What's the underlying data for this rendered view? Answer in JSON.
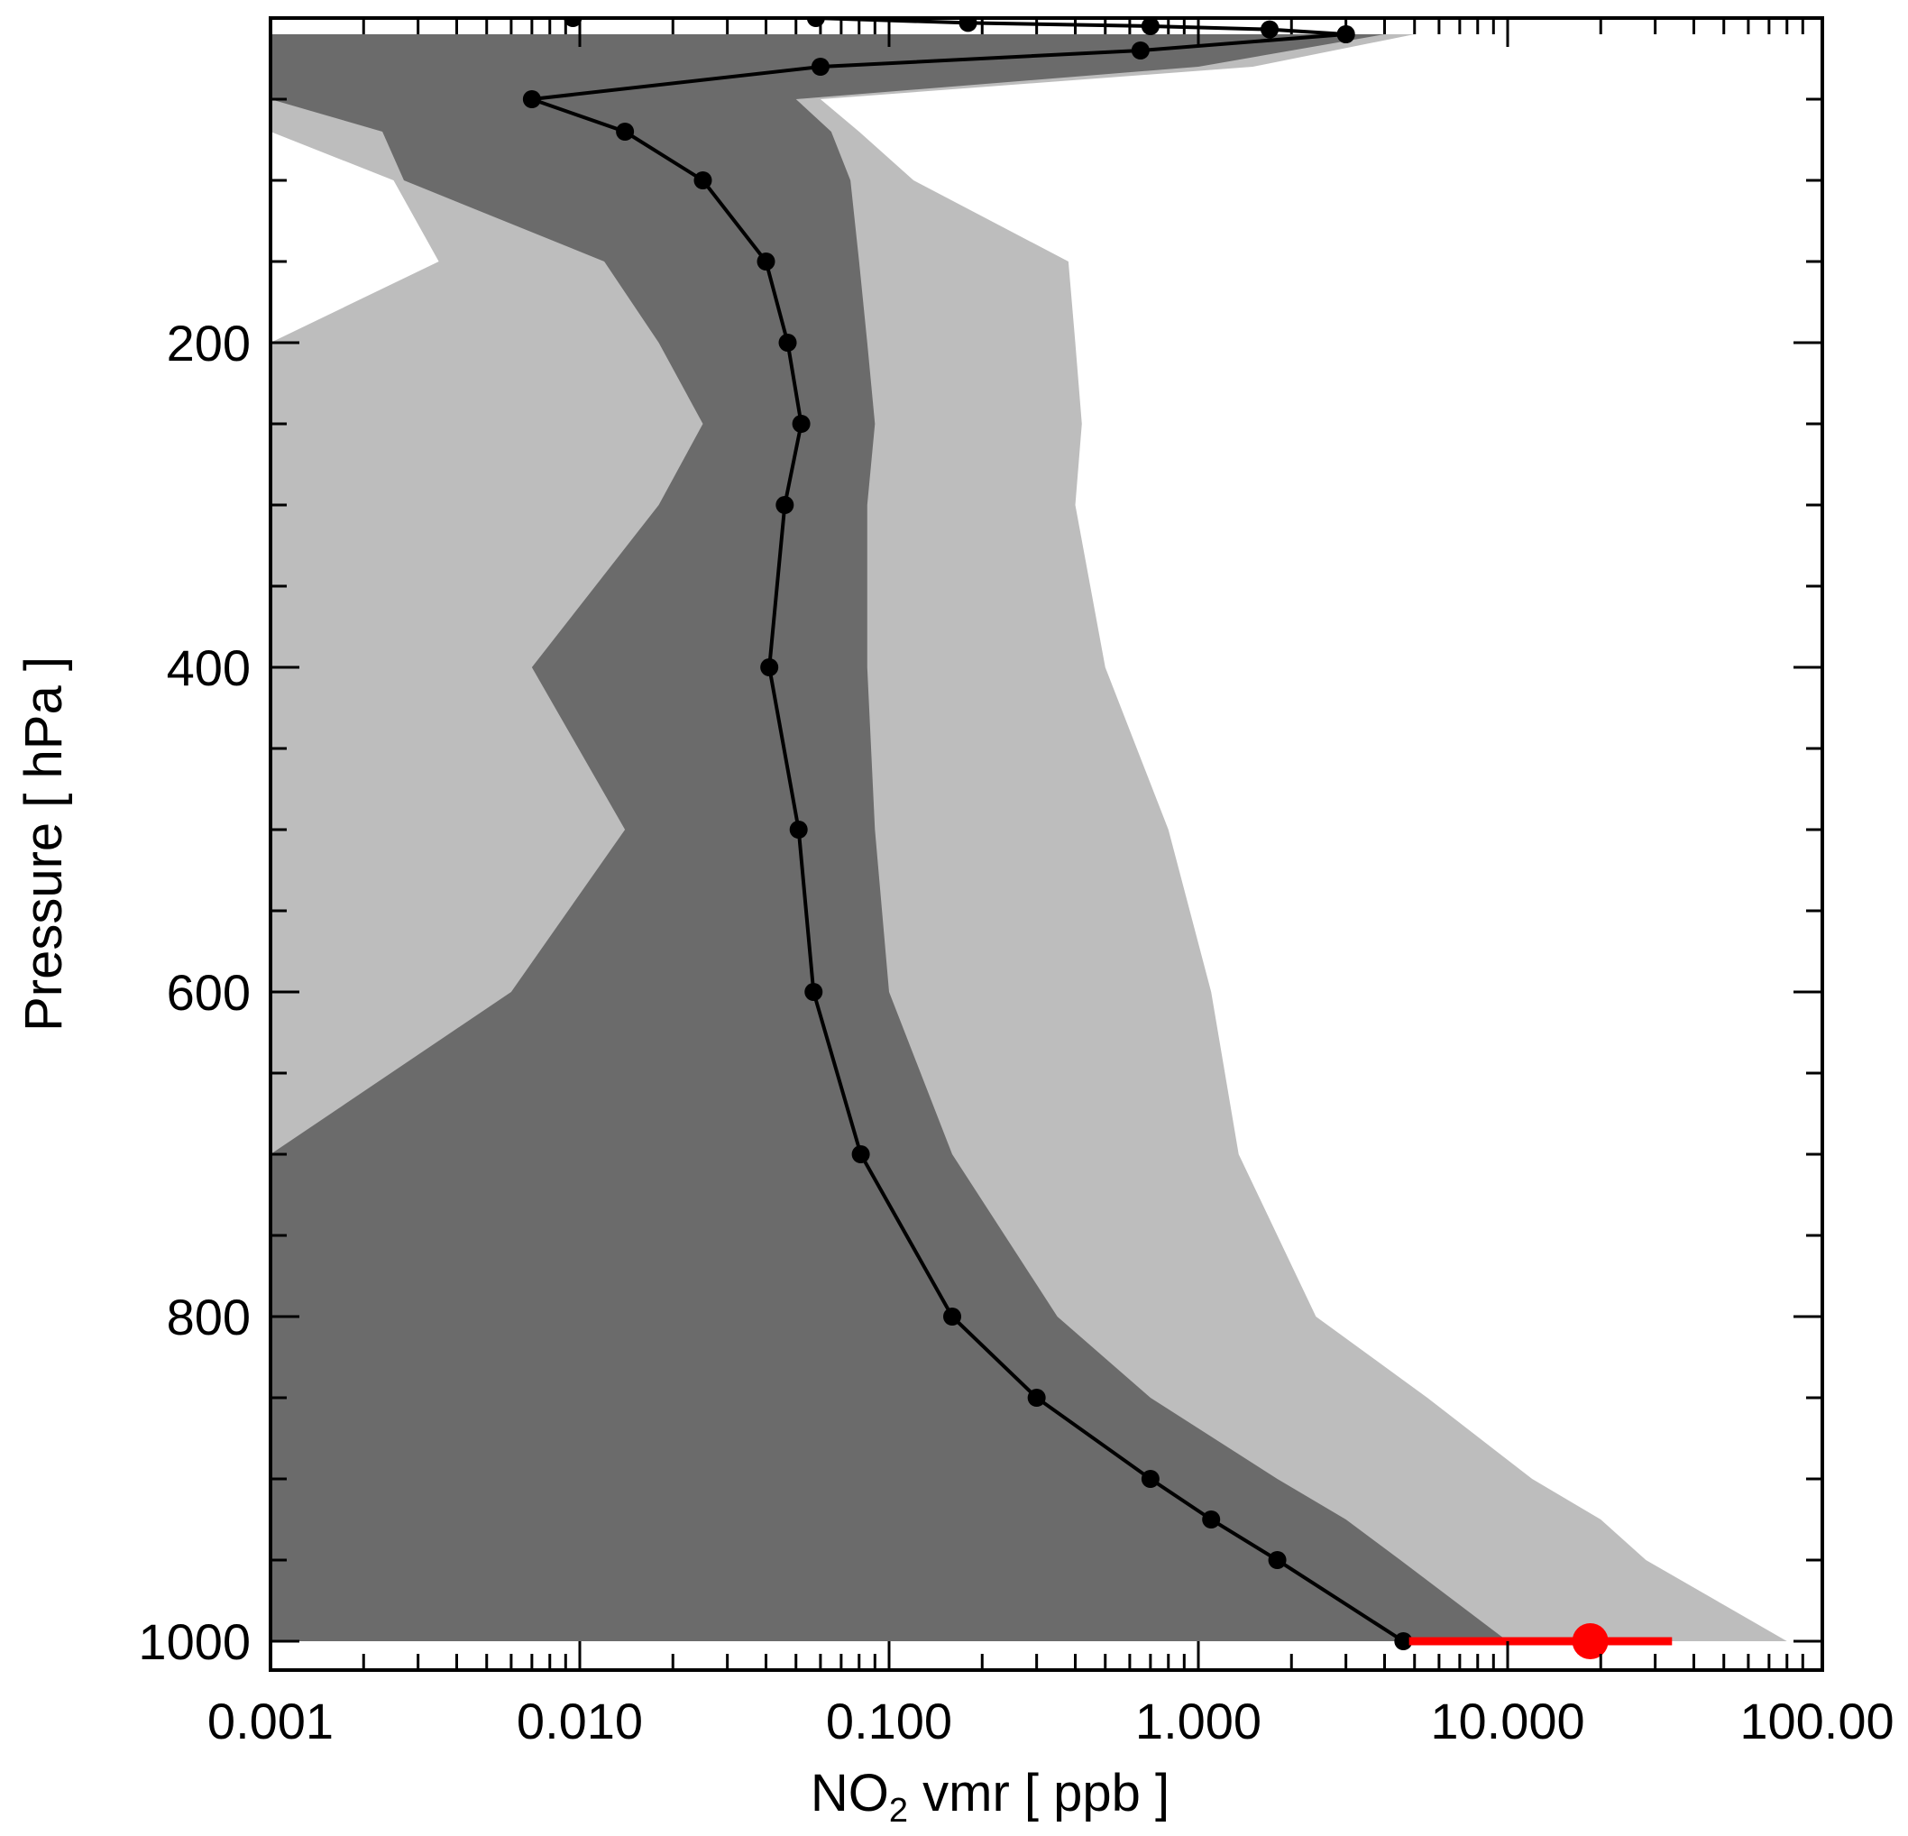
{
  "chart_data": {
    "type": "area",
    "xlabel_main": "NO",
    "xlabel_sub": "2",
    "xlabel_rest": " vmr [ ppb ]",
    "ylabel": "Pressure [ hPa ]",
    "xscale": "log",
    "xlim": [
      0.001,
      100
    ],
    "ylim": [
      1000,
      0
    ],
    "x_ticks": [
      0.001,
      0.01,
      0.1,
      1,
      10,
      100
    ],
    "x_tick_labels": [
      "0.001",
      "0.010",
      "0.100",
      "1.000",
      "10.000",
      "100.00"
    ],
    "y_ticks": [
      200,
      400,
      600,
      800,
      1000
    ],
    "y_tick_labels": [
      "200",
      "400",
      "600",
      "800",
      "1000"
    ],
    "grid": false,
    "colors": {
      "outer_band": "#bdbdbd",
      "inner_band": "#6b6b6b",
      "profile": "#000000",
      "observation": "#ff0000"
    },
    "outer_band": {
      "pressure": [
        10,
        30,
        50,
        70,
        100,
        150,
        200,
        250,
        300,
        400,
        500,
        600,
        700,
        800,
        850,
        900,
        925,
        950,
        1000
      ],
      "x_min": [
        0.001,
        0.001,
        0.001,
        0.001,
        0.0025,
        0.0035,
        0.001,
        0.001,
        0.001,
        0.001,
        0.001,
        0.001,
        0.001,
        0.001,
        0.001,
        0.001,
        0.001,
        0.001,
        0.001
      ],
      "x_max": [
        5.0,
        1.5,
        0.06,
        0.08,
        0.12,
        0.38,
        0.4,
        0.42,
        0.4,
        0.5,
        0.8,
        1.1,
        1.35,
        2.4,
        5.5,
        12,
        20,
        28,
        80
      ]
    },
    "inner_band": {
      "pressure": [
        10,
        30,
        50,
        70,
        100,
        150,
        200,
        250,
        300,
        400,
        500,
        600,
        700,
        800,
        850,
        900,
        925,
        950,
        1000
      ],
      "x_min": [
        0.001,
        0.001,
        0.001,
        0.0023,
        0.0027,
        0.012,
        0.018,
        0.025,
        0.018,
        0.007,
        0.014,
        0.006,
        0.001,
        0.001,
        0.001,
        0.001,
        0.001,
        0.001,
        0.001
      ],
      "x_max": [
        4.0,
        1.0,
        0.05,
        0.065,
        0.075,
        0.08,
        0.085,
        0.09,
        0.085,
        0.085,
        0.09,
        0.1,
        0.16,
        0.35,
        0.7,
        1.8,
        3.0,
        4.5,
        10
      ]
    },
    "series": [
      {
        "values": [
          {
            "x": 3.0,
            "p": 10
          },
          {
            "x": 0.65,
            "p": 20
          },
          {
            "x": 0.06,
            "p": 30
          },
          {
            "x": 0.007,
            "p": 50
          },
          {
            "x": 0.014,
            "p": 70
          },
          {
            "x": 0.025,
            "p": 100
          },
          {
            "x": 0.04,
            "p": 150
          },
          {
            "x": 0.047,
            "p": 200
          },
          {
            "x": 0.052,
            "p": 250
          },
          {
            "x": 0.046,
            "p": 300
          },
          {
            "x": 0.041,
            "p": 400
          },
          {
            "x": 0.051,
            "p": 500
          },
          {
            "x": 0.057,
            "p": 600
          },
          {
            "x": 0.081,
            "p": 700
          },
          {
            "x": 0.16,
            "p": 800
          },
          {
            "x": 0.3,
            "p": 850
          },
          {
            "x": 0.7,
            "p": 900
          },
          {
            "x": 1.1,
            "p": 925
          },
          {
            "x": 1.8,
            "p": 950
          },
          {
            "x": 4.6,
            "p": 1000
          }
        ]
      },
      {
        "values": [
          {
            "x": 0.0095,
            "p": 0
          },
          {
            "x": 0.058,
            "p": 0
          },
          {
            "x": 0.18,
            "p": 3
          },
          {
            "x": 0.7,
            "p": 5
          },
          {
            "x": 1.7,
            "p": 7
          },
          {
            "x": 3.0,
            "p": 10
          }
        ]
      }
    ],
    "observation": {
      "x": 18.5,
      "p": 1000,
      "x_low": 4.8,
      "x_high": 34
    }
  }
}
